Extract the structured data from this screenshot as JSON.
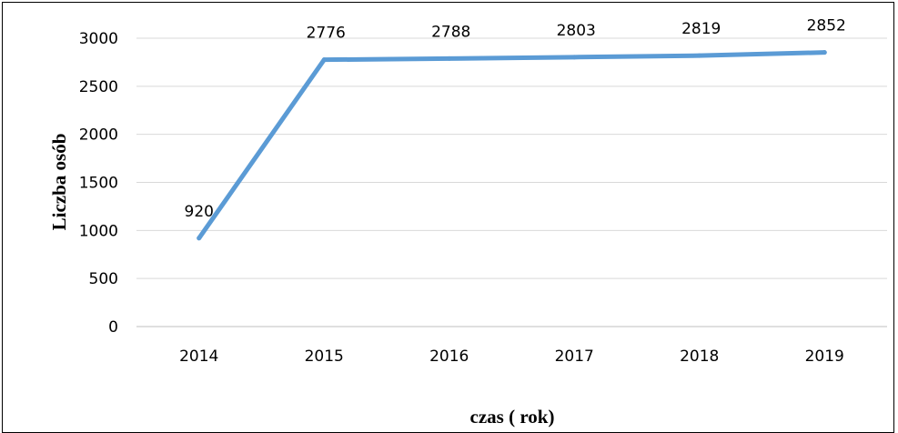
{
  "chart_data": {
    "type": "line",
    "title": "",
    "xlabel": "czas ( rok)",
    "ylabel": "Liczba osób",
    "categories": [
      "2014",
      "2015",
      "2016",
      "2017",
      "2018",
      "2019"
    ],
    "series": [
      {
        "values": [
          920,
          2776,
          2788,
          2803,
          2819,
          2852
        ],
        "color": "#5b9bd5"
      }
    ],
    "data_labels": [
      "920",
      "2776",
      "2788",
      "2803",
      "2819",
      "2852"
    ],
    "ylim": [
      0,
      3000
    ],
    "yticks": [
      0,
      500,
      1000,
      1500,
      2000,
      2500,
      3000
    ],
    "ytick_labels": [
      "0",
      "500",
      "1000",
      "1500",
      "2000",
      "2500",
      "3000"
    ],
    "grid": "horizontal",
    "legend": "none",
    "colors": {
      "line": "#5b9bd5",
      "grid": "#d9d9d9",
      "axis": "#bfbfbf",
      "text": "#000000"
    }
  }
}
